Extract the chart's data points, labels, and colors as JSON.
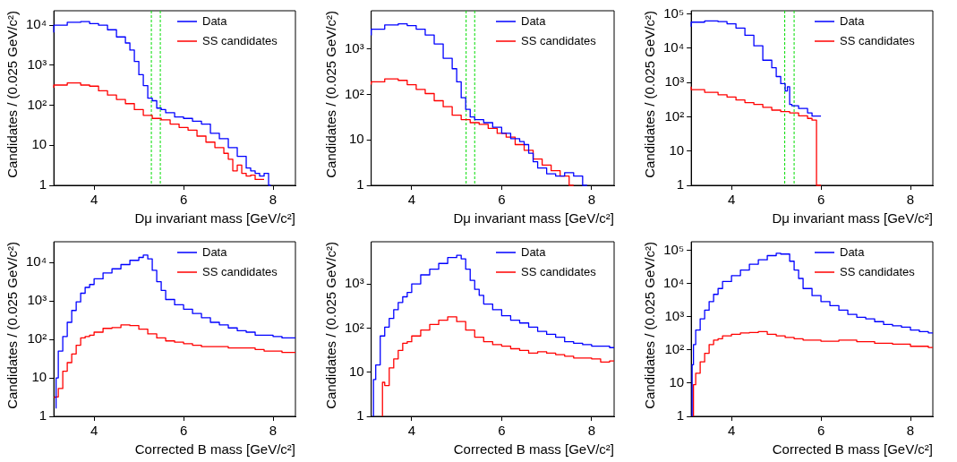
{
  "chart_data": [
    {
      "type": "step",
      "xlabel": "Dμ invariant mass [GeV/c²]",
      "ylabel": "Candidates / (0.025 GeV/c²)",
      "log": "y",
      "legend": "top right",
      "xlim": [
        3.1,
        8.5
      ],
      "xticks": [
        4,
        6,
        8
      ],
      "ylim": [
        1,
        23000
      ],
      "yticks": [
        {
          "value": 1,
          "label": "1"
        },
        {
          "value": 10,
          "label": "10"
        },
        {
          "value": 100,
          "label": "10²"
        },
        {
          "value": 1000,
          "label": "10³"
        },
        {
          "value": 10000,
          "label": "10⁴"
        }
      ],
      "ref_lines": [
        {
          "axis": "x",
          "value": 5.28,
          "color": "#00dd00",
          "line_style": "dashed"
        },
        {
          "axis": "x",
          "value": 5.48,
          "color": "#00dd00",
          "line_style": "dashed"
        }
      ],
      "series": [
        {
          "name": "Data",
          "color": "#0000ff",
          "x": [
            3.1,
            3.4,
            3.7,
            3.9,
            4.1,
            4.3,
            4.5,
            4.7,
            4.8,
            4.9,
            5.0,
            5.1,
            5.2,
            5.3,
            5.4,
            5.5,
            5.6,
            5.8,
            6.0,
            6.2,
            6.4,
            6.6,
            6.8,
            7.0,
            7.2,
            7.4,
            7.5,
            7.6,
            7.7,
            7.8,
            7.9,
            7.95
          ],
          "values": [
            6600,
            10000,
            11800,
            12300,
            11000,
            10000,
            7700,
            5100,
            3600,
            2400,
            1240,
            580,
            310,
            150,
            130,
            85,
            78,
            65,
            51,
            47,
            40,
            34,
            20,
            14.6,
            8.8,
            5.3,
            2.7,
            2.3,
            2,
            1.7,
            2,
            1
          ]
        },
        {
          "name": "SS candidates",
          "color": "#ff0000",
          "x": [
            3.1,
            3.4,
            3.7,
            3.9,
            4.1,
            4.3,
            4.5,
            4.7,
            4.9,
            5.1,
            5.3,
            5.5,
            5.7,
            5.9,
            6.1,
            6.3,
            6.5,
            6.7,
            6.9,
            7.0,
            7.1,
            7.2,
            7.3,
            7.4,
            7.5,
            7.6,
            7.7,
            7.8
          ],
          "values": [
            275,
            320,
            360,
            320,
            300,
            230,
            180,
            140,
            110,
            78,
            56,
            47,
            43,
            34,
            28,
            24,
            17,
            12,
            8.8,
            6.3,
            4.5,
            2.3,
            3.2,
            2,
            1.7,
            1.8,
            1.4,
            1.4
          ]
        }
      ]
    },
    {
      "type": "step",
      "xlabel": "Dμ invariant mass [GeV/c²]",
      "ylabel": "Candidates / (0.025 GeV/c²)",
      "log": "y",
      "legend": "top right",
      "xlim": [
        3.1,
        8.5
      ],
      "xticks": [
        4,
        6,
        8
      ],
      "ylim": [
        1,
        7000
      ],
      "yticks": [
        {
          "value": 1,
          "label": "1"
        },
        {
          "value": 10,
          "label": "10"
        },
        {
          "value": 100,
          "label": "10²"
        },
        {
          "value": 1000,
          "label": "10³"
        }
      ],
      "ref_lines": [
        {
          "axis": "x",
          "value": 5.21,
          "color": "#00dd00",
          "line_style": "dashed"
        },
        {
          "axis": "x",
          "value": 5.4,
          "color": "#00dd00",
          "line_style": "dashed"
        }
      ],
      "series": [
        {
          "name": "Data",
          "color": "#0000ff",
          "x": [
            3.1,
            3.4,
            3.7,
            3.9,
            4.1,
            4.3,
            4.5,
            4.7,
            4.9,
            5.0,
            5.1,
            5.2,
            5.3,
            5.4,
            5.6,
            5.8,
            6.0,
            6.2,
            6.4,
            6.5,
            6.6,
            6.7,
            6.8,
            7.0,
            7.2,
            7.4,
            7.6,
            7.8,
            7.9
          ],
          "values": [
            2000,
            2750,
            3400,
            3600,
            3300,
            2750,
            2050,
            1300,
            630,
            370,
            190,
            85,
            47,
            32,
            28,
            24,
            19,
            14,
            10.7,
            9.2,
            7.9,
            5.1,
            3.3,
            2.4,
            1.8,
            1.6,
            1.9,
            1.6,
            1
          ]
        },
        {
          "name": "SS candidates",
          "color": "#ff0000",
          "x": [
            3.1,
            3.4,
            3.7,
            3.9,
            4.1,
            4.3,
            4.5,
            4.7,
            4.9,
            5.1,
            5.3,
            5.5,
            5.7,
            5.9,
            6.1,
            6.3,
            6.5,
            6.7,
            6.9,
            7.1,
            7.3,
            7.5,
            7.6
          ],
          "values": [
            165,
            190,
            220,
            205,
            165,
            130,
            105,
            73,
            54,
            35,
            28,
            24,
            22,
            18,
            14,
            11.5,
            7.9,
            5.9,
            3.8,
            2.8,
            2.1,
            1.6,
            1
          ]
        }
      ]
    },
    {
      "type": "step",
      "xlabel": "Dμ invariant mass [GeV/c²]",
      "ylabel": "Candidates / (0.025 GeV/c²)",
      "log": "y",
      "legend": "top right",
      "xlim": [
        3.1,
        8.5
      ],
      "xticks": [
        4,
        6,
        8
      ],
      "ylim": [
        1,
        125000
      ],
      "yticks": [
        {
          "value": 1,
          "label": "1"
        },
        {
          "value": 10,
          "label": "10"
        },
        {
          "value": 100,
          "label": "10²"
        },
        {
          "value": 1000,
          "label": "10³"
        },
        {
          "value": 10000,
          "label": "10⁴"
        },
        {
          "value": 100000,
          "label": "10⁵"
        }
      ],
      "ref_lines": [
        {
          "axis": "x",
          "value": 5.19,
          "color": "#00dd00",
          "line_style": "dashed"
        },
        {
          "axis": "x",
          "value": 5.4,
          "color": "#00dd00",
          "line_style": "dashed"
        }
      ],
      "series": [
        {
          "name": "Data",
          "color": "#0000ff",
          "x": [
            3.1,
            3.4,
            3.7,
            3.9,
            4.1,
            4.3,
            4.5,
            4.7,
            4.9,
            5.0,
            5.1,
            5.2,
            5.25,
            5.3,
            5.35,
            5.5,
            5.7,
            5.8,
            5.9,
            6.0
          ],
          "values": [
            43000,
            58000,
            63000,
            60000,
            52000,
            39000,
            24000,
            11800,
            4500,
            2700,
            1500,
            930,
            570,
            760,
            230,
            210,
            175,
            130,
            105,
            105
          ]
        },
        {
          "name": "SS candidates",
          "color": "#ff0000",
          "x": [
            3.1,
            3.4,
            3.7,
            3.9,
            4.1,
            4.3,
            4.5,
            4.7,
            4.9,
            5.1,
            5.3,
            5.5,
            5.7,
            5.8,
            5.9,
            6.0
          ],
          "values": [
            760,
            620,
            520,
            440,
            380,
            310,
            260,
            230,
            190,
            157,
            142,
            130,
            107,
            90,
            80,
            1
          ]
        }
      ]
    },
    {
      "type": "step",
      "xlabel": "Corrected B mass [GeV/c²]",
      "ylabel": "Candidates / (0.025 GeV/c²)",
      "log": "y",
      "legend": "top right",
      "xlim": [
        3.1,
        8.5
      ],
      "xticks": [
        4,
        6,
        8
      ],
      "ylim": [
        1,
        35000
      ],
      "yticks": [
        {
          "value": 1,
          "label": "1"
        },
        {
          "value": 10,
          "label": "10"
        },
        {
          "value": 100,
          "label": "10²"
        },
        {
          "value": 1000,
          "label": "10³"
        },
        {
          "value": 10000,
          "label": "10⁴"
        }
      ],
      "series": [
        {
          "name": "Data",
          "color": "#0000ff",
          "x": [
            3.15,
            3.2,
            3.3,
            3.4,
            3.5,
            3.6,
            3.7,
            3.8,
            3.9,
            4.0,
            4.2,
            4.4,
            4.6,
            4.8,
            5.0,
            5.1,
            5.2,
            5.3,
            5.4,
            5.5,
            5.6,
            5.8,
            6.0,
            6.2,
            6.4,
            6.6,
            6.8,
            7.0,
            7.2,
            7.4,
            7.6,
            7.8,
            8.0,
            8.2,
            8.4,
            8.5
          ],
          "values": [
            1.6,
            10,
            50,
            120,
            280,
            570,
            950,
            1600,
            2270,
            2700,
            3800,
            5400,
            6900,
            8900,
            11500,
            13700,
            15700,
            12500,
            6300,
            3200,
            1900,
            1100,
            800,
            615,
            475,
            370,
            280,
            240,
            200,
            170,
            155,
            130,
            130,
            120,
            110,
            110
          ]
        },
        {
          "name": "SS candidates",
          "color": "#ff0000",
          "x": [
            3.12,
            3.2,
            3.3,
            3.4,
            3.5,
            3.6,
            3.7,
            3.8,
            3.9,
            4.0,
            4.2,
            4.4,
            4.6,
            4.8,
            5.0,
            5.2,
            5.4,
            5.6,
            5.8,
            6.0,
            6.2,
            6.4,
            6.6,
            6.8,
            7.0,
            7.2,
            7.4,
            7.6,
            7.8,
            8.0,
            8.2,
            8.4,
            8.5
          ],
          "values": [
            3,
            3.2,
            5.3,
            15,
            25,
            42,
            71,
            110,
            120,
            130,
            155,
            195,
            205,
            240,
            230,
            185,
            140,
            110,
            92,
            85,
            78,
            71,
            65,
            65,
            65,
            60,
            60,
            60,
            55,
            50,
            50,
            46,
            46
          ]
        }
      ]
    },
    {
      "type": "step",
      "xlabel": "Corrected B mass [GeV/c²]",
      "ylabel": "Candidates / (0.025 GeV/c²)",
      "log": "y",
      "legend": "top right",
      "xlim": [
        3.1,
        8.5
      ],
      "xticks": [
        4,
        6,
        8
      ],
      "ylim": [
        1,
        9000
      ],
      "yticks": [
        {
          "value": 1,
          "label": "1"
        },
        {
          "value": 10,
          "label": "10"
        },
        {
          "value": 100,
          "label": "10²"
        },
        {
          "value": 1000,
          "label": "10³"
        }
      ],
      "series": [
        {
          "name": "Data",
          "color": "#0000ff",
          "x": [
            3.15,
            3.2,
            3.3,
            3.4,
            3.5,
            3.6,
            3.7,
            3.8,
            3.9,
            4.0,
            4.2,
            4.4,
            4.6,
            4.8,
            5.0,
            5.1,
            5.2,
            5.3,
            5.4,
            5.5,
            5.6,
            5.8,
            6.0,
            6.2,
            6.4,
            6.6,
            6.8,
            7.0,
            7.2,
            7.4,
            7.6,
            7.8,
            8.0,
            8.2,
            8.4,
            8.5
          ],
          "values": [
            1,
            6.8,
            14.6,
            66,
            105,
            165,
            260,
            380,
            510,
            640,
            1000,
            1600,
            2150,
            2900,
            3950,
            4450,
            3700,
            2150,
            1200,
            750,
            550,
            350,
            260,
            190,
            150,
            130,
            105,
            84,
            72,
            62,
            49,
            45,
            42,
            39,
            39,
            36
          ]
        },
        {
          "name": "SS candidates",
          "color": "#ff0000",
          "x": [
            3.35,
            3.4,
            3.5,
            3.6,
            3.7,
            3.8,
            3.9,
            4.0,
            4.2,
            4.4,
            4.6,
            4.8,
            5.0,
            5.2,
            5.4,
            5.6,
            5.8,
            6.0,
            6.2,
            6.4,
            6.6,
            6.8,
            7.0,
            7.2,
            7.4,
            7.6,
            7.8,
            8.0,
            8.2,
            8.4,
            8.5
          ],
          "values": [
            1,
            5.9,
            5,
            12.5,
            20,
            31,
            45,
            49,
            66,
            90,
            120,
            150,
            180,
            140,
            90,
            62,
            49,
            42,
            39,
            34,
            31,
            27,
            29,
            27,
            25,
            23,
            21,
            21,
            20,
            17,
            18
          ]
        }
      ]
    },
    {
      "type": "step",
      "xlabel": "Corrected B mass [GeV/c²]",
      "ylabel": "Candidates / (0.025 GeV/c²)",
      "log": "y",
      "legend": "top right",
      "xlim": [
        3.1,
        8.5
      ],
      "xticks": [
        4,
        6,
        8
      ],
      "ylim": [
        1,
        186000
      ],
      "yticks": [
        {
          "value": 1,
          "label": "1"
        },
        {
          "value": 10,
          "label": "10"
        },
        {
          "value": 100,
          "label": "10²"
        },
        {
          "value": 1000,
          "label": "10³"
        },
        {
          "value": 10000,
          "label": "10⁴"
        },
        {
          "value": 100000,
          "label": "10⁵"
        }
      ],
      "series": [
        {
          "name": "Data",
          "color": "#0000ff",
          "x": [
            3.12,
            3.15,
            3.2,
            3.3,
            3.4,
            3.5,
            3.6,
            3.7,
            3.8,
            4.0,
            4.2,
            4.4,
            4.6,
            4.8,
            5.0,
            5.1,
            5.3,
            5.4,
            5.5,
            5.6,
            5.8,
            6.0,
            6.2,
            6.4,
            6.6,
            6.8,
            7.0,
            7.2,
            7.4,
            7.6,
            7.8,
            8.0,
            8.2,
            8.4,
            8.5
          ],
          "values": [
            1,
            36,
            147,
            400,
            880,
            1600,
            2900,
            4800,
            7200,
            11700,
            17700,
            26000,
            39000,
            53000,
            71000,
            83000,
            79000,
            48000,
            26000,
            14500,
            7200,
            4400,
            2900,
            2200,
            1600,
            1200,
            980,
            880,
            720,
            590,
            540,
            490,
            400,
            360,
            330
          ]
        },
        {
          "name": "SS candidates",
          "color": "#ff0000",
          "x": [
            3.15,
            3.2,
            3.3,
            3.4,
            3.5,
            3.6,
            3.7,
            3.8,
            4.0,
            4.2,
            4.4,
            4.6,
            4.8,
            5.0,
            5.2,
            5.4,
            5.6,
            6.0,
            6.4,
            6.8,
            7.2,
            7.6,
            8.0,
            8.4,
            8.5
          ],
          "values": [
            1,
            9,
            20,
            44,
            80,
            147,
            200,
            220,
            270,
            300,
            330,
            340,
            360,
            300,
            270,
            240,
            220,
            200,
            185,
            200,
            180,
            160,
            150,
            130,
            120
          ]
        }
      ]
    }
  ]
}
